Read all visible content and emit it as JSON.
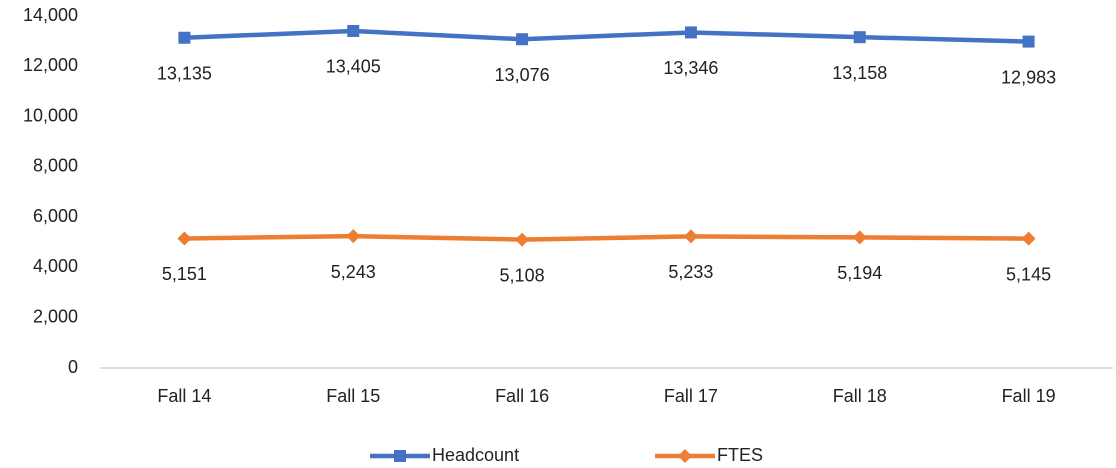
{
  "chart_data": {
    "type": "line",
    "categories": [
      "Fall 14",
      "Fall 15",
      "Fall 16",
      "Fall 17",
      "Fall 18",
      "Fall 19"
    ],
    "series": [
      {
        "name": "Headcount",
        "color": "#4472c4",
        "marker": "square",
        "values": [
          13135,
          13405,
          13076,
          13346,
          13158,
          12983
        ],
        "value_labels": [
          "13,135",
          "13,405",
          "13,076",
          "13,346",
          "13,158",
          "12,983"
        ]
      },
      {
        "name": "FTES",
        "color": "#ed7d31",
        "marker": "diamond",
        "values": [
          5151,
          5243,
          5108,
          5233,
          5194,
          5145
        ],
        "value_labels": [
          "5,151",
          "5,243",
          "5,108",
          "5,233",
          "5,194",
          "5,145"
        ]
      }
    ],
    "ylim": [
      0,
      14000
    ],
    "yticks": [
      0,
      {
        "value": 2000,
        "label": "2,000"
      },
      {
        "value": 4000,
        "label": "4,000"
      },
      {
        "value": 6000,
        "label": "6,000"
      },
      {
        "value": 8000,
        "label": "8,000"
      },
      {
        "value": 10000,
        "label": "10,000"
      },
      {
        "value": 12000,
        "label": "12,000"
      },
      {
        "value": 14000,
        "label": "14,000"
      }
    ],
    "grid": false,
    "legend": "bottom"
  }
}
